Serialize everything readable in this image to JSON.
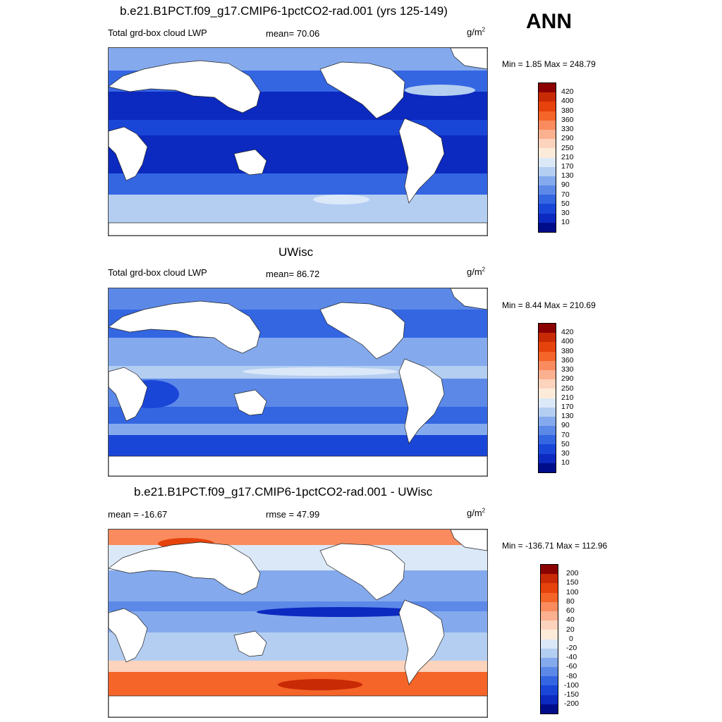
{
  "season": "ANN",
  "units_base": "g/m",
  "units_exp": "2",
  "panels": [
    {
      "title": "b.e21.B1PCT.f09_g17.CMIP6-1pctCO2-rad.001 (yrs 125-149)",
      "left_label": "Total grd-box cloud LWP",
      "center_label": "mean=  70.06",
      "minmax": "Min =   1.85 Max = 248.79",
      "levels": [
        "420",
        "400",
        "380",
        "360",
        "330",
        "290",
        "250",
        "210",
        "170",
        "130",
        "90",
        "70",
        "50",
        "30",
        "10"
      ],
      "colors": [
        "#8b0000",
        "#c92a06",
        "#e6420c",
        "#f56428",
        "#f98b5e",
        "#fbb090",
        "#fcd3bc",
        "#fdebd9",
        "#dbe8f8",
        "#b4cef2",
        "#84aaed",
        "#5c89e8",
        "#3466e2",
        "#1a46d8",
        "#0c29c0",
        "#000d8a"
      ]
    },
    {
      "title": "UWisc",
      "left_label": "Total grd-box cloud LWP",
      "center_label": "mean=  86.72",
      "minmax": "Min =   8.44 Max = 210.69",
      "levels": [
        "420",
        "400",
        "380",
        "360",
        "330",
        "290",
        "250",
        "210",
        "170",
        "130",
        "90",
        "70",
        "50",
        "30",
        "10"
      ],
      "colors": [
        "#8b0000",
        "#c92a06",
        "#e6420c",
        "#f56428",
        "#f98b5e",
        "#fbb090",
        "#fcd3bc",
        "#fdebd9",
        "#dbe8f8",
        "#b4cef2",
        "#84aaed",
        "#5c89e8",
        "#3466e2",
        "#1a46d8",
        "#0c29c0",
        "#000d8a"
      ]
    },
    {
      "title": "b.e21.B1PCT.f09_g17.CMIP6-1pctCO2-rad.001 - UWisc",
      "left_label": "mean = -16.67",
      "center_label": "rmse =  47.99",
      "minmax": "Min = -136.71 Max = 112.96",
      "levels": [
        "200",
        "150",
        "100",
        "80",
        "60",
        "40",
        "20",
        "0",
        "-20",
        "-40",
        "-60",
        "-80",
        "-100",
        "-150",
        "-200"
      ],
      "colors": [
        "#8b0000",
        "#c92a06",
        "#e6420c",
        "#f56428",
        "#f98b5e",
        "#fbb090",
        "#fcd3bc",
        "#fdebd9",
        "#dbe8f8",
        "#b4cef2",
        "#84aaed",
        "#5c89e8",
        "#3466e2",
        "#1a46d8",
        "#0c29c0",
        "#000d8a"
      ]
    }
  ]
}
